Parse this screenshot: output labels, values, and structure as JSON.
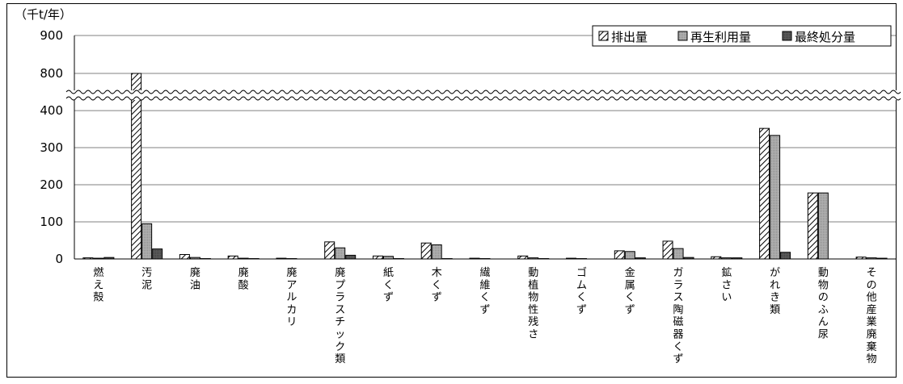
{
  "chart_data": {
    "type": "bar",
    "unit_label": "（千t/年）",
    "y_ticks": [
      900,
      800,
      400,
      300,
      200,
      100,
      0
    ],
    "y_axis_break": {
      "lower_range": [
        0,
        450
      ],
      "upper_range": [
        750,
        900
      ]
    },
    "grid": true,
    "legend_position": "top-right",
    "categories": [
      "燃え殻",
      "汚泥",
      "廃油",
      "廃酸",
      "廃アルカリ",
      "廃プラスチック類",
      "紙くず",
      "木くず",
      "繊維くず",
      "動植物性残さ",
      "ゴムくず",
      "金属くず",
      "ガラス陶磁器くず",
      "鉱さい",
      "がれき類",
      "動物のふん尿",
      "その他産業廃棄物"
    ],
    "series": [
      {
        "name": "排出量",
        "pattern": "hatched",
        "values": [
          3,
          800,
          12,
          8,
          2,
          46,
          8,
          43,
          2,
          8,
          2,
          22,
          48,
          6,
          352,
          178,
          5
        ]
      },
      {
        "name": "再生利用量",
        "pattern": "light-gray",
        "values": [
          2,
          95,
          4,
          2,
          1,
          30,
          7,
          38,
          1,
          3,
          1,
          20,
          28,
          3,
          333,
          178,
          3
        ]
      },
      {
        "name": "最終処分量",
        "pattern": "dark-gray",
        "values": [
          4,
          27,
          1,
          1,
          0,
          10,
          1,
          1,
          0,
          1,
          0,
          3,
          4,
          3,
          18,
          0,
          2
        ]
      }
    ]
  }
}
